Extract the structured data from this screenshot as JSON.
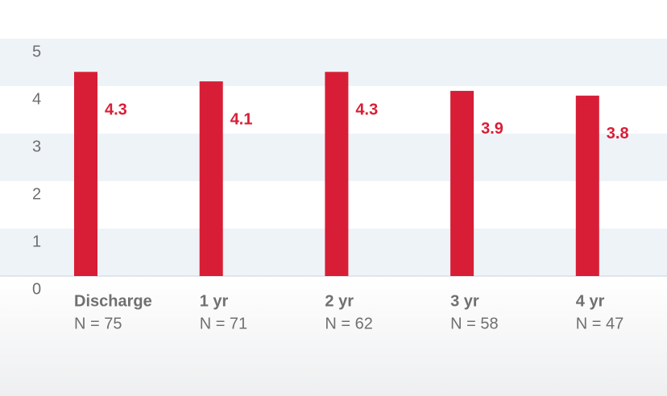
{
  "chart_data": {
    "type": "bar",
    "categories": [
      "Discharge",
      "1 yr",
      "2 yr",
      "3 yr",
      "4 yr"
    ],
    "sample_sizes": [
      "N = 75",
      "N = 71",
      "N = 62",
      "N = 58",
      "N = 47"
    ],
    "values": [
      4.3,
      4.1,
      4.3,
      3.9,
      3.8
    ],
    "color": "#d81e36",
    "ylim": [
      0,
      5
    ],
    "yticks": [
      0,
      1,
      2,
      3,
      4,
      5
    ],
    "grid": "bands"
  }
}
